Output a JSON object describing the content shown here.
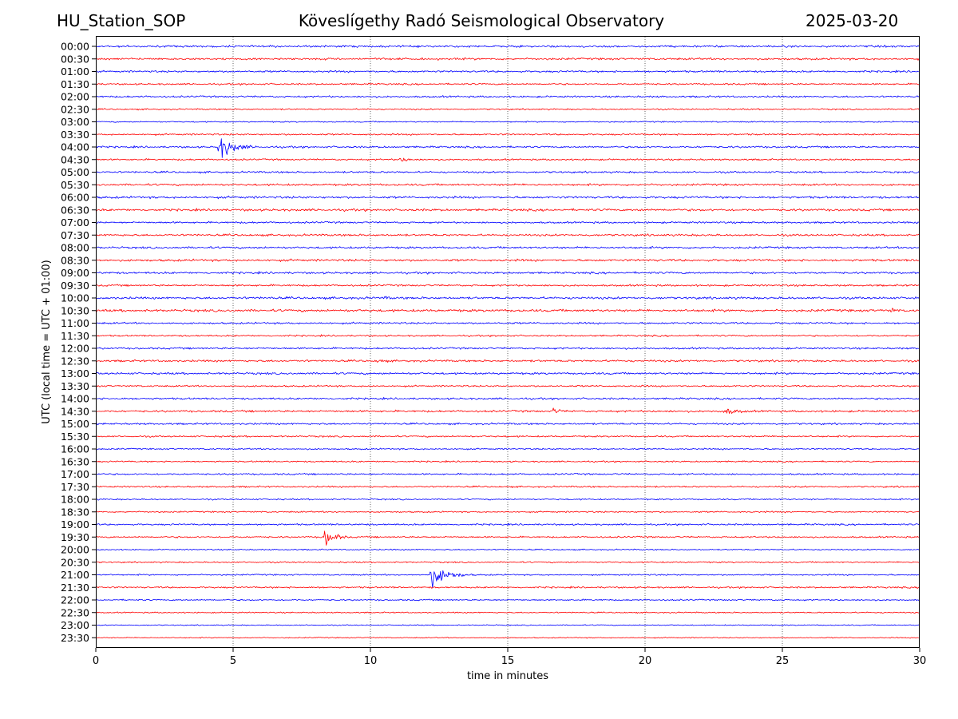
{
  "header": {
    "station": "HU_Station_SOP",
    "observatory": "Köveslígethy Radó Seismological Observatory",
    "date": "2025-03-20"
  },
  "chart_data": {
    "type": "line",
    "title": "Köveslígethy Radó Seismological Observatory",
    "xlabel": "time in minutes",
    "ylabel": "UTC (local time = UTC + 01:00)",
    "xlim": [
      0,
      30
    ],
    "x_ticks": [
      0,
      5,
      10,
      15,
      20,
      25,
      30
    ],
    "grid": "vertical dotted lines at x ticks",
    "row_colors": [
      "#0000ff",
      "#ff0000"
    ],
    "rows": [
      "00:00",
      "00:30",
      "01:00",
      "01:30",
      "02:00",
      "02:30",
      "03:00",
      "03:30",
      "04:00",
      "04:30",
      "05:00",
      "05:30",
      "06:00",
      "06:30",
      "07:00",
      "07:30",
      "08:00",
      "08:30",
      "09:00",
      "09:30",
      "10:00",
      "10:30",
      "11:00",
      "11:30",
      "12:00",
      "12:30",
      "13:00",
      "13:30",
      "14:00",
      "14:30",
      "15:00",
      "15:30",
      "16:00",
      "16:30",
      "17:00",
      "17:30",
      "18:00",
      "18:30",
      "19:00",
      "19:30",
      "20:00",
      "20:30",
      "21:00",
      "21:30",
      "22:00",
      "22:30",
      "23:00",
      "23:30"
    ],
    "row_noise": [
      1.0,
      1.0,
      0.9,
      0.8,
      0.9,
      0.7,
      0.6,
      0.8,
      0.9,
      0.8,
      0.9,
      1.0,
      1.1,
      1.1,
      0.9,
      1.0,
      1.0,
      1.1,
      1.0,
      0.9,
      1.1,
      1.2,
      0.9,
      0.8,
      0.9,
      1.0,
      1.0,
      0.8,
      0.9,
      1.0,
      0.9,
      0.8,
      0.7,
      0.7,
      0.8,
      0.8,
      0.7,
      0.7,
      0.8,
      0.8,
      0.6,
      0.7,
      0.7,
      0.8,
      0.7,
      0.6,
      0.5,
      0.5
    ],
    "events": [
      {
        "row": "04:00",
        "start_min": 4.5,
        "amplitude": 14,
        "decay_min": 0.55,
        "duration_min": 2.2
      },
      {
        "row": "04:30",
        "start_min": 11.1,
        "amplitude": 3,
        "decay_min": 0.6,
        "duration_min": 1.0
      },
      {
        "row": "06:30",
        "start_min": 19.8,
        "amplitude": 2.5,
        "decay_min": 0.4,
        "duration_min": 0.9
      },
      {
        "row": "10:00",
        "start_min": 10.6,
        "amplitude": 2.5,
        "decay_min": 0.3,
        "duration_min": 0.5
      },
      {
        "row": "10:30",
        "start_min": 29.0,
        "amplitude": 3.5,
        "decay_min": 0.3,
        "duration_min": 0.6
      },
      {
        "row": "12:30",
        "start_min": 10.3,
        "amplitude": 3,
        "decay_min": 0.4,
        "duration_min": 0.7
      },
      {
        "row": "14:30",
        "start_min": 16.7,
        "amplitude": 4,
        "decay_min": 0.3,
        "duration_min": 0.6
      },
      {
        "row": "14:30",
        "start_min": 22.9,
        "amplitude": 4,
        "decay_min": 0.8,
        "duration_min": 2.2
      },
      {
        "row": "19:30",
        "start_min": 8.35,
        "amplitude": 12,
        "decay_min": 0.35,
        "duration_min": 1.2
      },
      {
        "row": "21:00",
        "start_min": 12.2,
        "amplitude": 14,
        "decay_min": 0.6,
        "duration_min": 2.5
      }
    ]
  }
}
